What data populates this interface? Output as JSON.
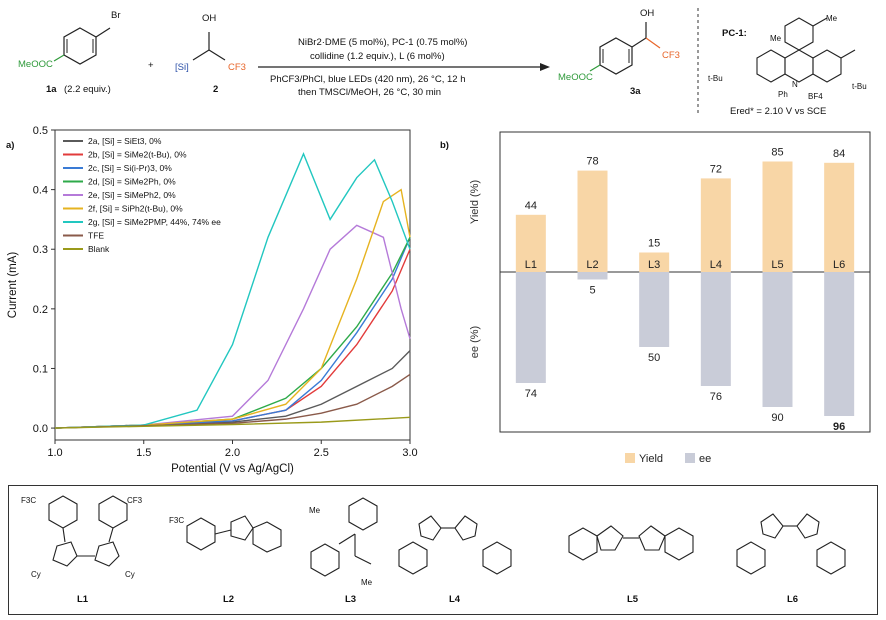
{
  "scheme": {
    "reactant1": {
      "label": "1a",
      "equiv": "(2.2 equiv.)",
      "br": "Br",
      "ester": "MeOOC"
    },
    "plus": "+",
    "reactant2": {
      "label": "2",
      "oh": "OH",
      "si": "[Si]",
      "cf3": "CF3"
    },
    "cond_line1": "NiBr2·DME (5 mol%), PC-1 (0.75 mol%)",
    "cond_line2": "collidine (1.2 equiv.), L (6 mol%)",
    "cond_line3": "PhCF3/PhCl, blue LEDs (420 nm), 26 °C, 12 h",
    "cond_line4": "then TMSCl/MeOH, 26 °C, 30 min",
    "product": {
      "label": "3a",
      "oh": "OH",
      "cf3": "CF3",
      "ester": "MeOOC"
    },
    "pc1": {
      "title": "PC-1:",
      "me1": "Me",
      "me2": "Me",
      "tbu1": "t-Bu",
      "tbu2": "t-Bu",
      "ph": "Ph",
      "n": "N",
      "bf4": "BF4",
      "ered": "Ered* = 2.10 V vs SCE"
    }
  },
  "colors": {
    "2a": "#5a5a5a",
    "2b": "#e23b3b",
    "2c": "#3a7bd5",
    "2d": "#2eaa4a",
    "2e": "#b57ad9",
    "2f": "#e6b320",
    "2g": "#22c7c0",
    "TFE": "#8a5a4a",
    "Blank": "#9a9a1a",
    "yield_bar": "#f8d6a6",
    "ee_bar": "#c9ccd8"
  },
  "chart_data": [
    {
      "panel": "a)",
      "type": "line",
      "xlabel": "Potential (V vs Ag/AgCl)",
      "ylabel": "Current (mA)",
      "xlim": [
        1.0,
        3.0
      ],
      "ylim": [
        -0.02,
        0.5
      ],
      "xticks": [
        "1.0",
        "1.5",
        "2.0",
        "2.5",
        "3.0"
      ],
      "yticks": [
        "0.0",
        "0.1",
        "0.2",
        "0.3",
        "0.4",
        "0.5"
      ],
      "series": [
        {
          "key": "2a",
          "name": "2a, [Si] = SiEt3, 0%",
          "x": [
            1.0,
            1.5,
            2.0,
            2.3,
            2.5,
            2.7,
            2.9,
            3.0
          ],
          "y": [
            0.0,
            0.005,
            0.01,
            0.02,
            0.04,
            0.07,
            0.1,
            0.13
          ]
        },
        {
          "key": "2b",
          "name": "2b, [Si] = SiMe2(t-Bu), 0%",
          "x": [
            1.0,
            1.5,
            2.0,
            2.3,
            2.5,
            2.7,
            2.9,
            3.0
          ],
          "y": [
            0.0,
            0.005,
            0.012,
            0.03,
            0.07,
            0.14,
            0.23,
            0.3
          ]
        },
        {
          "key": "2c",
          "name": "2c, [Si] = Si(i-Pr)3, 0%",
          "x": [
            1.0,
            1.5,
            2.0,
            2.3,
            2.5,
            2.7,
            2.9,
            3.0
          ],
          "y": [
            0.0,
            0.005,
            0.012,
            0.03,
            0.08,
            0.16,
            0.25,
            0.32
          ]
        },
        {
          "key": "2d",
          "name": "2d, [Si] = SiMe2Ph, 0%",
          "x": [
            1.0,
            1.5,
            2.0,
            2.3,
            2.5,
            2.7,
            2.9,
            3.0
          ],
          "y": [
            0.0,
            0.005,
            0.015,
            0.05,
            0.1,
            0.17,
            0.26,
            0.32
          ]
        },
        {
          "key": "2e",
          "name": "2e, [Si] = SiMePh2, 0%",
          "x": [
            1.0,
            1.5,
            2.0,
            2.2,
            2.4,
            2.55,
            2.7,
            2.85,
            2.95,
            3.0
          ],
          "y": [
            0.0,
            0.005,
            0.02,
            0.08,
            0.2,
            0.3,
            0.34,
            0.32,
            0.2,
            0.15
          ]
        },
        {
          "key": "2f",
          "name": "2f, [Si] = SiPh2(t-Bu), 0%",
          "x": [
            1.0,
            1.5,
            2.0,
            2.3,
            2.5,
            2.7,
            2.85,
            2.95,
            3.0
          ],
          "y": [
            0.0,
            0.005,
            0.015,
            0.04,
            0.1,
            0.25,
            0.38,
            0.4,
            0.32
          ]
        },
        {
          "key": "2g",
          "name": "2g, [Si] = SiMe2PMP, 44%, 74% ee",
          "x": [
            1.0,
            1.5,
            1.8,
            2.0,
            2.2,
            2.4,
            2.55,
            2.7,
            2.8,
            2.9,
            3.0
          ],
          "y": [
            0.0,
            0.005,
            0.03,
            0.14,
            0.32,
            0.46,
            0.35,
            0.42,
            0.45,
            0.38,
            0.3
          ]
        },
        {
          "key": "TFE",
          "name": "TFE",
          "x": [
            1.0,
            1.5,
            2.0,
            2.3,
            2.5,
            2.7,
            2.9,
            3.0
          ],
          "y": [
            0.0,
            0.004,
            0.008,
            0.015,
            0.025,
            0.04,
            0.07,
            0.09
          ]
        },
        {
          "key": "Blank",
          "name": "Blank",
          "x": [
            1.0,
            1.5,
            2.0,
            2.5,
            3.0
          ],
          "y": [
            0.0,
            0.003,
            0.006,
            0.01,
            0.018
          ]
        }
      ]
    },
    {
      "panel": "b)",
      "type": "bar",
      "categories": [
        "L1",
        "L2",
        "L3",
        "L4",
        "L5",
        "L6"
      ],
      "ylabel_top": "Yield (%)",
      "ylabel_bottom": "ee (%)",
      "series": [
        {
          "name": "Yield",
          "values": [
            44,
            78,
            15,
            72,
            85,
            84
          ]
        },
        {
          "name": "ee",
          "values": [
            74,
            5,
            50,
            76,
            90,
            96
          ]
        }
      ],
      "value_labels_yield": [
        "44",
        "78",
        "15",
        "72",
        "85",
        "84"
      ],
      "value_labels_ee": [
        "74",
        "5",
        "50",
        "76",
        "90",
        "96"
      ],
      "legend": [
        "Yield",
        "ee"
      ]
    }
  ],
  "ligands": {
    "labels": [
      "L1",
      "L2",
      "L3",
      "L4",
      "L5",
      "L6"
    ],
    "l1": {
      "cf3a": "F3C",
      "cf3b": "CF3",
      "cy1": "Cy",
      "cy2": "Cy",
      "n1": "N",
      "n2": "N"
    },
    "l2": {
      "cf3": "F3C"
    },
    "l3": {
      "me1": "Me",
      "me2": "Me",
      "n1": "N",
      "n2": "N"
    }
  }
}
